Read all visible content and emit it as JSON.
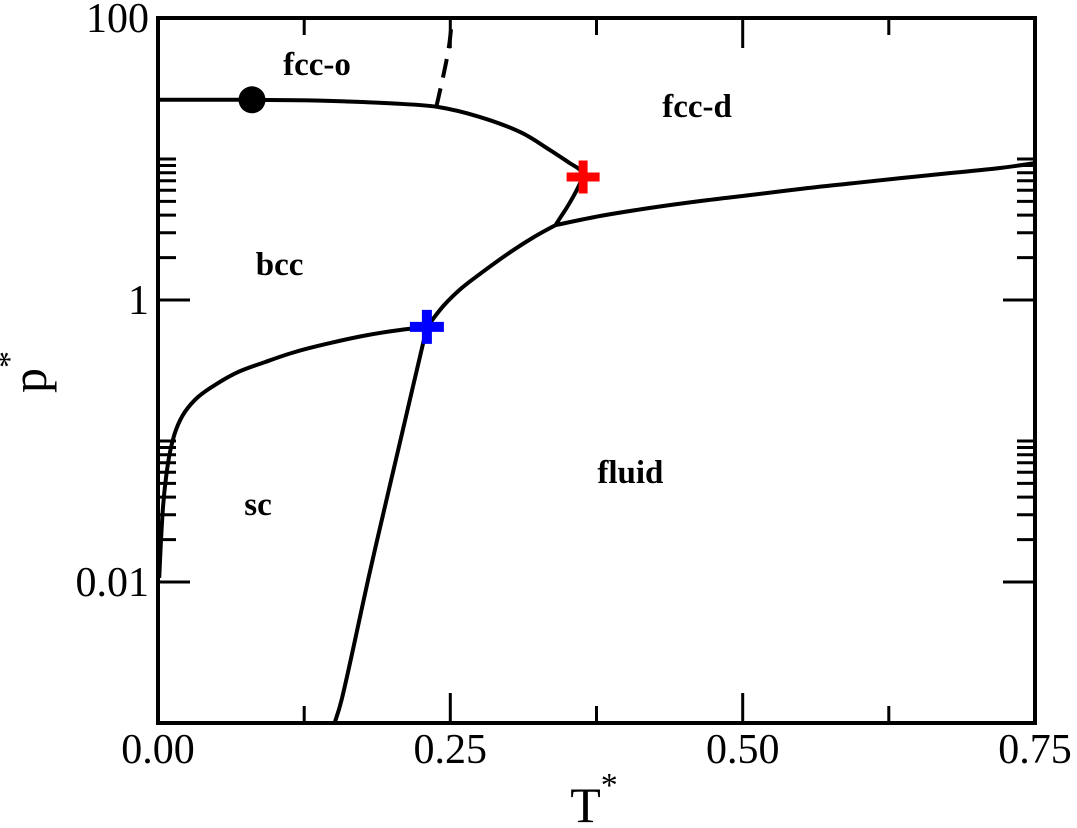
{
  "figure": {
    "background_color": "#ffffff",
    "line_color": "#000000"
  },
  "chart_data": {
    "type": "line",
    "title": "",
    "description": "Phase diagram: reduced pressure p* (log scale) versus reduced temperature T* with sc, bcc, fcc-o, fcc-d and fluid phase regions",
    "xlabel": {
      "base": "T",
      "superscript": "*"
    },
    "ylabel": {
      "base": "p",
      "superscript": "*"
    },
    "x_axis": {
      "scale": "linear",
      "min": 0.0,
      "max": 0.75,
      "major_ticks": [
        0.0,
        0.25,
        0.5,
        0.75
      ],
      "major_tick_labels": [
        "0.00",
        "0.25",
        "0.50",
        "0.75"
      ],
      "minor_ticks": [
        0.125,
        0.375,
        0.625
      ]
    },
    "y_axis": {
      "scale": "log",
      "min": 0.001,
      "max": 100,
      "major_ticks": [
        100,
        1,
        0.01
      ],
      "major_tick_labels": [
        "100",
        "1",
        "0.01"
      ],
      "minor_ticks": [
        10,
        9,
        8,
        7,
        6,
        5,
        4,
        3,
        2,
        0.1,
        0.09,
        0.08,
        0.07,
        0.06,
        0.05,
        0.04,
        0.03,
        0.02
      ]
    },
    "grid": "off",
    "legend": "none",
    "series": [
      {
        "id": "bcc-fcc-boundary",
        "name": "bcc / fcc-o coexistence loop",
        "style": "solid",
        "color": "#000000",
        "points": [
          [
            0.0,
            26.3
          ],
          [
            0.04,
            26.35
          ],
          [
            0.08,
            26.3
          ],
          [
            0.12,
            26.1
          ],
          [
            0.16,
            25.6
          ],
          [
            0.2,
            24.8
          ],
          [
            0.239,
            23.4
          ],
          [
            0.275,
            19.9
          ],
          [
            0.31,
            15.5
          ],
          [
            0.335,
            11.6
          ],
          [
            0.352,
            9.37
          ],
          [
            0.361,
            8.35
          ],
          [
            0.3627,
            7.45
          ],
          [
            0.359,
            6.23
          ],
          [
            0.351,
            4.72
          ],
          [
            0.345,
            3.95
          ],
          [
            0.34,
            3.4
          ]
        ]
      },
      {
        "id": "melting-line",
        "name": "solid / fluid melting line",
        "style": "solid",
        "color": "#000000",
        "points": [
          [
            0.34,
            3.4
          ],
          [
            0.378,
            3.94
          ],
          [
            0.421,
            4.5
          ],
          [
            0.464,
            5.04
          ],
          [
            0.506,
            5.55
          ],
          [
            0.549,
            6.13
          ],
          [
            0.592,
            6.7
          ],
          [
            0.635,
            7.32
          ],
          [
            0.678,
            7.95
          ],
          [
            0.72,
            8.64
          ],
          [
            0.75,
            9.36
          ]
        ]
      },
      {
        "id": "sc-bcc-boundary",
        "name": "sc / bcc boundary",
        "style": "solid",
        "color": "#000000",
        "points": [
          [
            0.001,
            0.0107
          ],
          [
            0.0026,
            0.0199
          ],
          [
            0.0043,
            0.034
          ],
          [
            0.0068,
            0.0547
          ],
          [
            0.0103,
            0.0836
          ],
          [
            0.0154,
            0.12
          ],
          [
            0.0231,
            0.161
          ],
          [
            0.0342,
            0.205
          ],
          [
            0.0488,
            0.25
          ],
          [
            0.0684,
            0.308
          ],
          [
            0.0915,
            0.363
          ],
          [
            0.1172,
            0.428
          ],
          [
            0.1471,
            0.495
          ],
          [
            0.1796,
            0.565
          ],
          [
            0.207,
            0.613
          ],
          [
            0.23,
            0.644
          ]
        ]
      },
      {
        "id": "sc-fluid-boundary",
        "name": "sc / fluid boundary",
        "style": "solid",
        "color": "#000000",
        "points": [
          [
            0.23,
            0.644
          ],
          [
            0.217,
            0.223
          ],
          [
            0.205,
            0.0836
          ],
          [
            0.192,
            0.0289
          ],
          [
            0.18,
            0.0107
          ],
          [
            0.168,
            0.0037
          ],
          [
            0.157,
            0.00146
          ],
          [
            0.151,
            0.001
          ]
        ]
      },
      {
        "id": "bcc-fluid-boundary",
        "name": "bcc / fluid boundary",
        "style": "solid",
        "color": "#000000",
        "points": [
          [
            0.23,
            0.644
          ],
          [
            0.244,
            0.906
          ],
          [
            0.26,
            1.22
          ],
          [
            0.279,
            1.61
          ],
          [
            0.299,
            2.12
          ],
          [
            0.32,
            2.75
          ],
          [
            0.34,
            3.4
          ]
        ]
      },
      {
        "id": "fcco-fccd-boundary",
        "name": "fcc-o / fcc-d boundary",
        "style": "dashed",
        "color": "#000000",
        "points": [
          [
            0.238,
            23.4
          ],
          [
            0.2447,
            41.4
          ],
          [
            0.249,
            64.4
          ],
          [
            0.2515,
            100
          ]
        ]
      }
    ],
    "markers": [
      {
        "id": "black-circle-point",
        "shape": "circle",
        "color": "#000000",
        "T": 0.0804,
        "p": 26.3,
        "size": 27
      },
      {
        "id": "red-plus-point",
        "shape": "plus",
        "color": "#ff0000",
        "T": 0.3635,
        "p": 7.45,
        "size": 33,
        "stroke": 9
      },
      {
        "id": "blue-plus-point",
        "shape": "plus",
        "color": "#0000ff",
        "T": 0.23,
        "p": 0.644,
        "size": 34,
        "stroke": 10
      }
    ],
    "region_labels": [
      {
        "id": "fcc-o",
        "text": "fcc-o",
        "T": 0.136,
        "p": 47.0
      },
      {
        "id": "fcc-d",
        "text": "fcc-d",
        "T": 0.461,
        "p": 23.8
      },
      {
        "id": "bcc",
        "text": "bcc",
        "T": 0.104,
        "p": 1.8
      },
      {
        "id": "sc",
        "text": "sc",
        "T": 0.0855,
        "p": 0.0357
      },
      {
        "id": "fluid",
        "text": "fluid",
        "T": 0.404,
        "p": 0.0603
      }
    ]
  }
}
